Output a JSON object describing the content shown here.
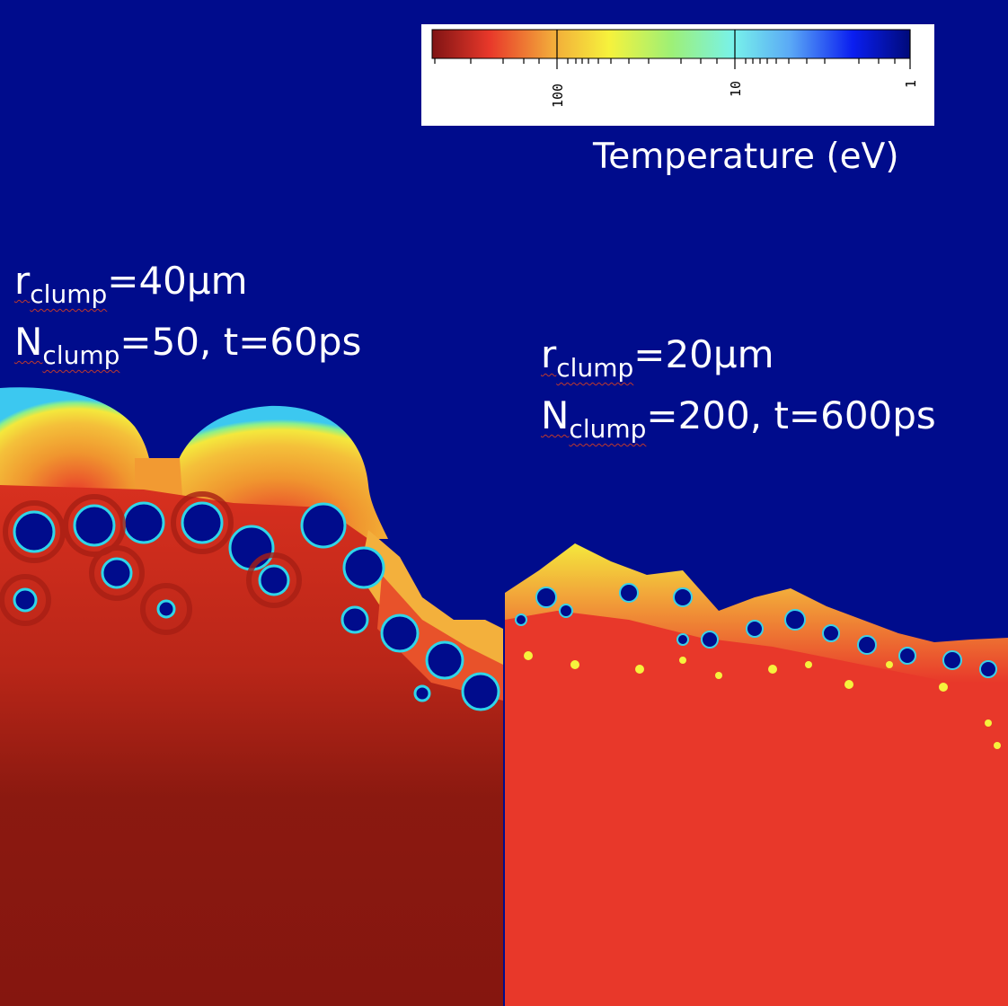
{
  "colorbar": {
    "title": "Temperature (eV)",
    "ticks": [
      "100",
      "10",
      "1"
    ],
    "colors": [
      "#801414",
      "#e8382a",
      "#f2a93a",
      "#f6f23c",
      "#9ef076",
      "#78f2ea",
      "#5aa8f6",
      "#0a1ef0",
      "#000a7a"
    ]
  },
  "panel_left": {
    "line1_main": "r",
    "line1_sub": "clump",
    "line1_rest": "=40μm",
    "line2_main": "N",
    "line2_sub": "clump",
    "line2_rest": "=50, t=60ps"
  },
  "panel_right": {
    "line1_main": "r",
    "line1_sub": "clump",
    "line1_rest": "=20μm",
    "line2_main": "N",
    "line2_sub": "clump",
    "line2_rest": "=200, t=600ps"
  },
  "colors": {
    "background": "#000c8c",
    "hot_dark": "#85160f",
    "hot": "#e8382a",
    "warm": "#f2a93a",
    "yellow": "#f6f23c",
    "cyan": "#78f2ea"
  }
}
